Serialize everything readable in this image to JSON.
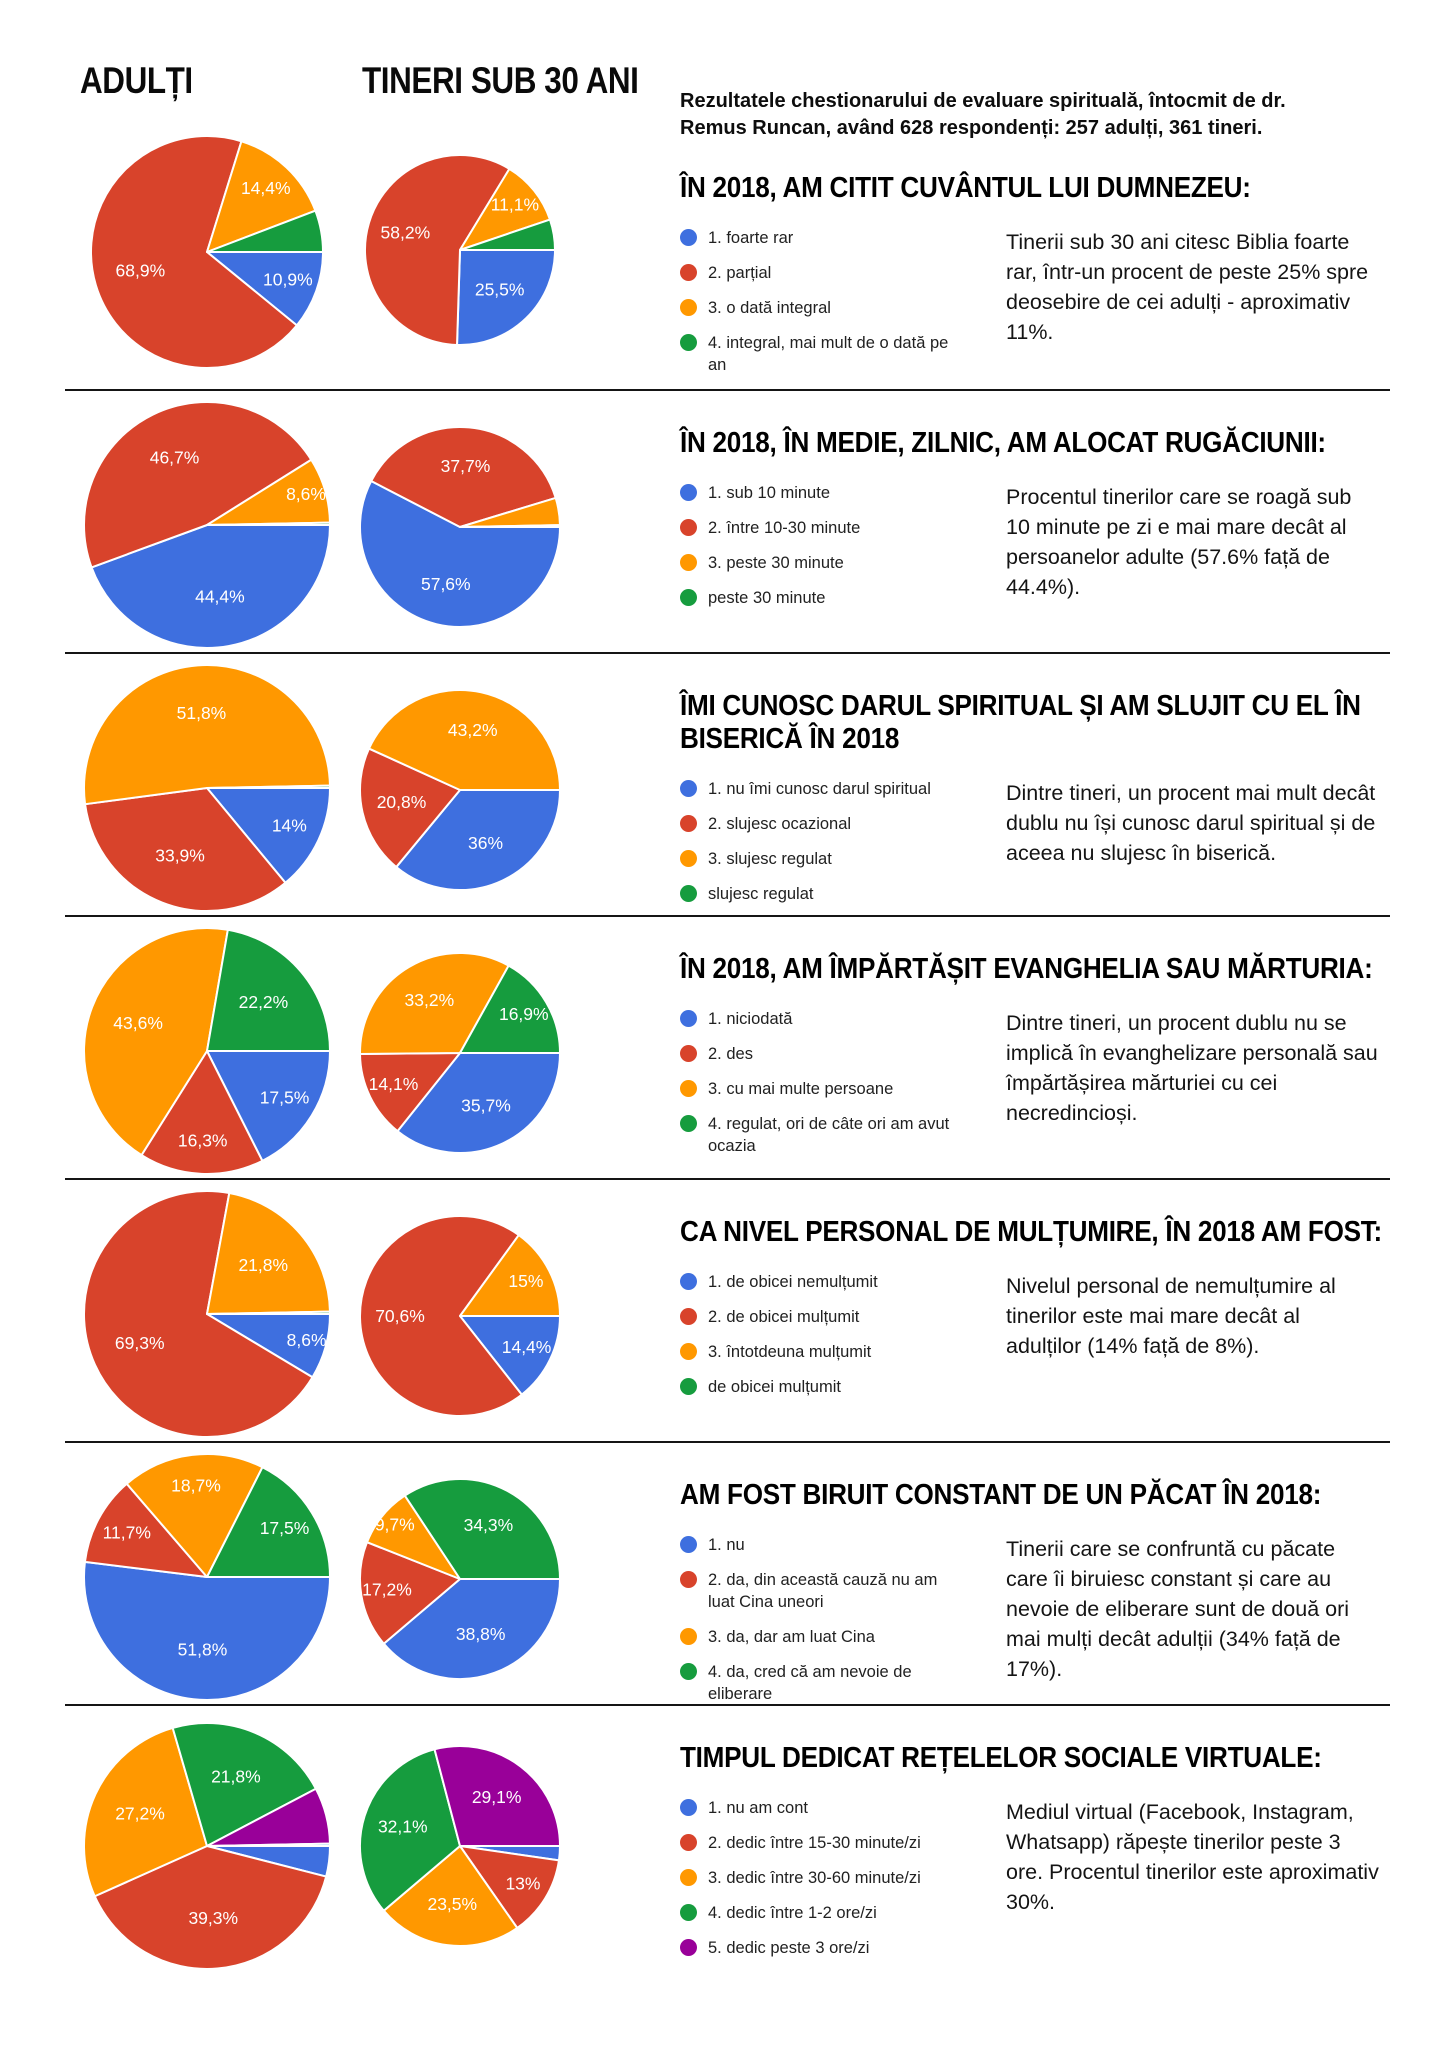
{
  "page": {
    "col_adults": "ADULȚI",
    "col_young": "TINERI SUB 30 ANI",
    "intro": "Rezultatele chestionarului de evaluare spirituală, întocmit de dr. Remus Runcan, având 628 respondenți: 257 adulți, 361 tineri."
  },
  "palette": {
    "blue": "#3E6FDF",
    "red": "#D8432B",
    "orange": "#FF9800",
    "green": "#169C3E",
    "purple": "#990099",
    "cyan": "#46B0E6",
    "divider": "#151515",
    "slice_label_text": "#ffffff"
  },
  "sections": [
    {
      "comment": "Tinerii sub 30 ani citesc Biblia foarte rar, într-un procent de peste 25% spre deosebire de cei adulți - aproximativ 11%."
    },
    {
      "comment": "Procentul tinerilor care se roagă sub 10 minute pe zi e mai mare decât al persoanelor adulte (57.6% față de 44.4%)."
    },
    {
      "comment": "Dintre tineri, un procent mai mult decât dublu nu își cunosc darul spiritual și de aceea nu slujesc în biserică."
    },
    {
      "comment": "Dintre tineri, un procent dublu nu se implică în evanghelizare personală sau împărtășirea mărturiei cu cei necredincioși."
    },
    {
      "comment": "Nivelul personal de nemulțumire al tinerilor este mai mare decât al adulților (14% față de 8%)."
    },
    {
      "comment": "Tinerii care se confruntă cu păcate care îi biruiesc constant și care au nevoie de eliberare sunt de două ori mai mulți decât adulții (34% față de 17%)."
    },
    {
      "comment": "Mediul virtual (Facebook, Instagram, Whatsapp) răpește tinerilor peste 3 ore. Procentul tinerilor este aproximativ 30%."
    }
  ],
  "chart_data": [
    {
      "type": "pie",
      "title": "ÎN 2018, AM CITIT CUVÂNTUL LUI DUMNEZEU:",
      "categories": [
        "1. foarte rar",
        "2. parțial",
        "3. o dată integral",
        "4. integral, mai mult de o dată pe an"
      ],
      "colors": [
        "blue",
        "red",
        "orange",
        "green"
      ],
      "series": [
        {
          "name": "ADULȚI",
          "values": [
            10.9,
            68.9,
            14.4,
            5.8
          ],
          "slice_labels": [
            "10,9%",
            "68,9%",
            "14,4%",
            null
          ]
        },
        {
          "name": "TINERI SUB 30 ANI",
          "values": [
            25.5,
            58.2,
            11.1,
            5.2
          ],
          "slice_labels": [
            "25,5%",
            "58,2%",
            "11,1%",
            null
          ]
        }
      ]
    },
    {
      "type": "pie",
      "title": "ÎN 2018, ÎN MEDIE, ZILNIC, AM ALOCAT RUGĂCIUNII:",
      "categories": [
        "1. sub 10 minute",
        "2. între 10-30 minute",
        "3. peste 30 minute",
        "peste 30 minute"
      ],
      "colors": [
        "blue",
        "red",
        "orange",
        "green"
      ],
      "series": [
        {
          "name": "ADULȚI",
          "values": [
            44.4,
            46.7,
            8.6,
            0.3
          ],
          "slice_labels": [
            "44,4%",
            "46,7%",
            "8,6%",
            null
          ]
        },
        {
          "name": "TINERI SUB 30 ANI",
          "values": [
            57.6,
            37.7,
            4.4,
            0.3
          ],
          "slice_labels": [
            "57,6%",
            "37,7%",
            null,
            null
          ]
        }
      ]
    },
    {
      "type": "pie",
      "title": "ÎMI CUNOSC DARUL SPIRITUAL ȘI AM SLUJIT CU EL ÎN BISERICĂ ÎN 2018",
      "categories": [
        "1. nu îmi cunosc darul spiritual",
        "2. slujesc ocazional",
        "3. slujesc regulat",
        "slujesc regulat"
      ],
      "colors": [
        "blue",
        "red",
        "orange",
        "green"
      ],
      "series": [
        {
          "name": "ADULȚI",
          "values": [
            14,
            33.9,
            51.8,
            0.3
          ],
          "slice_labels": [
            "14%",
            "33,9%",
            "51,8%",
            null
          ]
        },
        {
          "name": "TINERI SUB 30 ANI",
          "values": [
            36,
            20.8,
            43.2,
            0
          ],
          "slice_labels": [
            "36%",
            "20,8%",
            "43,2%",
            null
          ]
        }
      ]
    },
    {
      "type": "pie",
      "title": "ÎN 2018, AM ÎMPĂRTĂȘIT EVANGHELIA SAU MĂRTURIA:",
      "categories": [
        "1. niciodată",
        "2. des",
        "3. cu mai multe persoane",
        "4. regulat, ori de câte ori am avut ocazia"
      ],
      "colors": [
        "blue",
        "red",
        "orange",
        "green"
      ],
      "series": [
        {
          "name": "ADULȚI",
          "values": [
            17.5,
            16.3,
            43.6,
            22.2
          ],
          "slice_labels": [
            "17,5%",
            "16,3%",
            "43,6%",
            "22,2%"
          ]
        },
        {
          "name": "TINERI SUB 30 ANI",
          "values": [
            35.7,
            14.1,
            33.2,
            16.9
          ],
          "slice_labels": [
            "35,7%",
            "14,1%",
            "33,2%",
            "16,9%"
          ]
        }
      ]
    },
    {
      "type": "pie",
      "title": "CA NIVEL PERSONAL DE MULȚUMIRE, ÎN 2018 AM FOST:",
      "categories": [
        "1. de obicei nemulțumit",
        "2. de obicei mulțumit",
        "3. întotdeuna mulțumit",
        "de obicei mulțumit"
      ],
      "colors": [
        "blue",
        "red",
        "orange",
        "green"
      ],
      "series": [
        {
          "name": "ADULȚI",
          "values": [
            8.6,
            69.3,
            21.8,
            0.3
          ],
          "slice_labels": [
            "8,6%",
            "69,3%",
            "21,8%",
            null
          ]
        },
        {
          "name": "TINERI SUB 30 ANI",
          "values": [
            14.4,
            70.6,
            15,
            0
          ],
          "slice_labels": [
            "14,4%",
            "70,6%",
            "15%",
            null
          ]
        }
      ]
    },
    {
      "type": "pie",
      "title": "AM FOST BIRUIT CONSTANT DE UN PĂCAT ÎN 2018:",
      "categories": [
        "1. nu",
        "2. da, din această cauză nu am luat Cina uneori",
        "3. da, dar am luat Cina",
        "4. da, cred că am nevoie de eliberare"
      ],
      "colors": [
        "blue",
        "red",
        "orange",
        "green"
      ],
      "series": [
        {
          "name": "ADULȚI",
          "values": [
            51.8,
            11.7,
            18.7,
            17.5
          ],
          "slice_labels": [
            "51,8%",
            "11,7%",
            "18,7%",
            "17,5%"
          ]
        },
        {
          "name": "TINERI SUB 30 ANI",
          "values": [
            38.8,
            17.2,
            9.7,
            34.3
          ],
          "slice_labels": [
            "38,8%",
            "17,2%",
            "9,7%",
            "34,3%"
          ]
        }
      ]
    },
    {
      "type": "pie",
      "title": "TIMPUL DEDICAT REȚELELOR SOCIALE VIRTUALE:",
      "categories": [
        "1. nu am cont",
        "2. dedic între 15-30 minute/zi",
        "3. dedic între 30-60 minute/zi",
        "4. dedic între 1-2 ore/zi",
        "5. dedic peste 3 ore/zi",
        ""
      ],
      "colors": [
        "blue",
        "red",
        "orange",
        "green",
        "purple",
        "cyan"
      ],
      "series": [
        {
          "name": "ADULȚI",
          "values": [
            4.0,
            39.3,
            27.2,
            21.8,
            7.4,
            0.3
          ],
          "slice_labels": [
            null,
            "39,3%",
            "27,2%",
            "21,8%",
            null,
            null
          ]
        },
        {
          "name": "TINERI SUB 30 ANI",
          "values": [
            2.3,
            13,
            23.5,
            32.1,
            29.1,
            0
          ],
          "slice_labels": [
            null,
            "13%",
            "23,5%",
            "32,1%",
            "29,1%",
            null
          ]
        }
      ]
    }
  ]
}
